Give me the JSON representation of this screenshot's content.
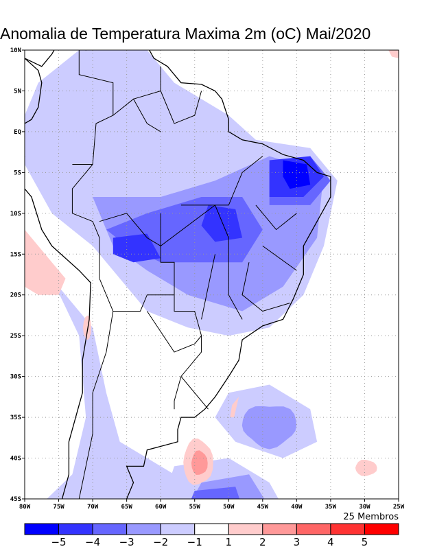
{
  "title": "Anomalia de Temperatura Maxima 2m (oC) Mai/2020",
  "members_label": "25 Membros",
  "lat_ticks": [
    "10N",
    "5N",
    "EQ",
    "5S",
    "10S",
    "15S",
    "20S",
    "25S",
    "30S",
    "35S",
    "40S",
    "45S"
  ],
  "lon_ticks": [
    "80W",
    "75W",
    "70W",
    "65W",
    "60W",
    "55W",
    "50W",
    "45W",
    "40W",
    "35W",
    "30W",
    "25W"
  ],
  "colorbar": {
    "colors": [
      "#0000ff",
      "#3333ff",
      "#6666ff",
      "#9999ff",
      "#ccccff",
      "#ffffff",
      "#ffcccc",
      "#ff9999",
      "#ff6666",
      "#ff3333",
      "#ff0000"
    ],
    "labels": [
      "-5",
      "-4",
      "-3",
      "-2",
      "-1",
      "1",
      "2",
      "3",
      "4",
      "5"
    ]
  }
}
